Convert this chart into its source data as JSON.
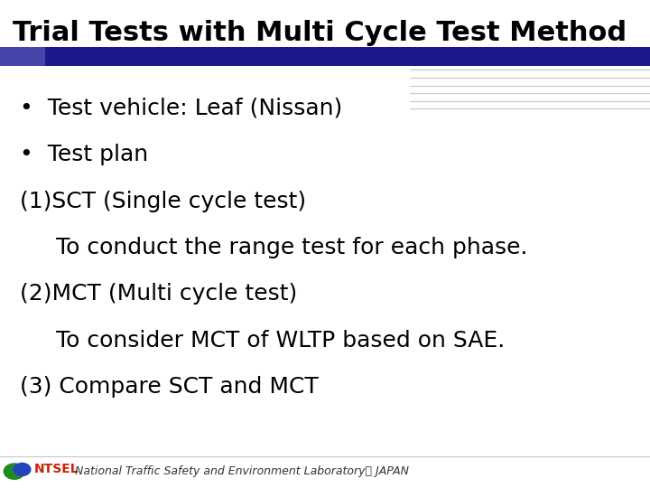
{
  "title": "Trial Tests with Multi Cycle Test Method",
  "title_fontsize": 22,
  "title_color": "#000000",
  "slide_bg": "#ffffff",
  "header_bar_color": "#1a1a8c",
  "header_bar_left_color": "#4444aa",
  "lines_color": "#cccccc",
  "bullet_lines": [
    "•  Test vehicle: Leaf (Nissan)",
    "•  Test plan",
    "(1)SCT (Single cycle test)",
    "     To conduct the range test for each phase.",
    "(2)MCT (Multi cycle test)",
    "     To consider MCT of WLTP based on SAE.",
    "(3) Compare SCT and MCT"
  ],
  "body_fontsize": 18,
  "footer_text": "National Traffic Safety and Environment Laboratory． JAPAN",
  "footer_fontsize": 9,
  "ntsel_text": "NTSEL",
  "ntsel_color": "#cc2200",
  "green_color": "#228822",
  "blue_color": "#2244bb"
}
